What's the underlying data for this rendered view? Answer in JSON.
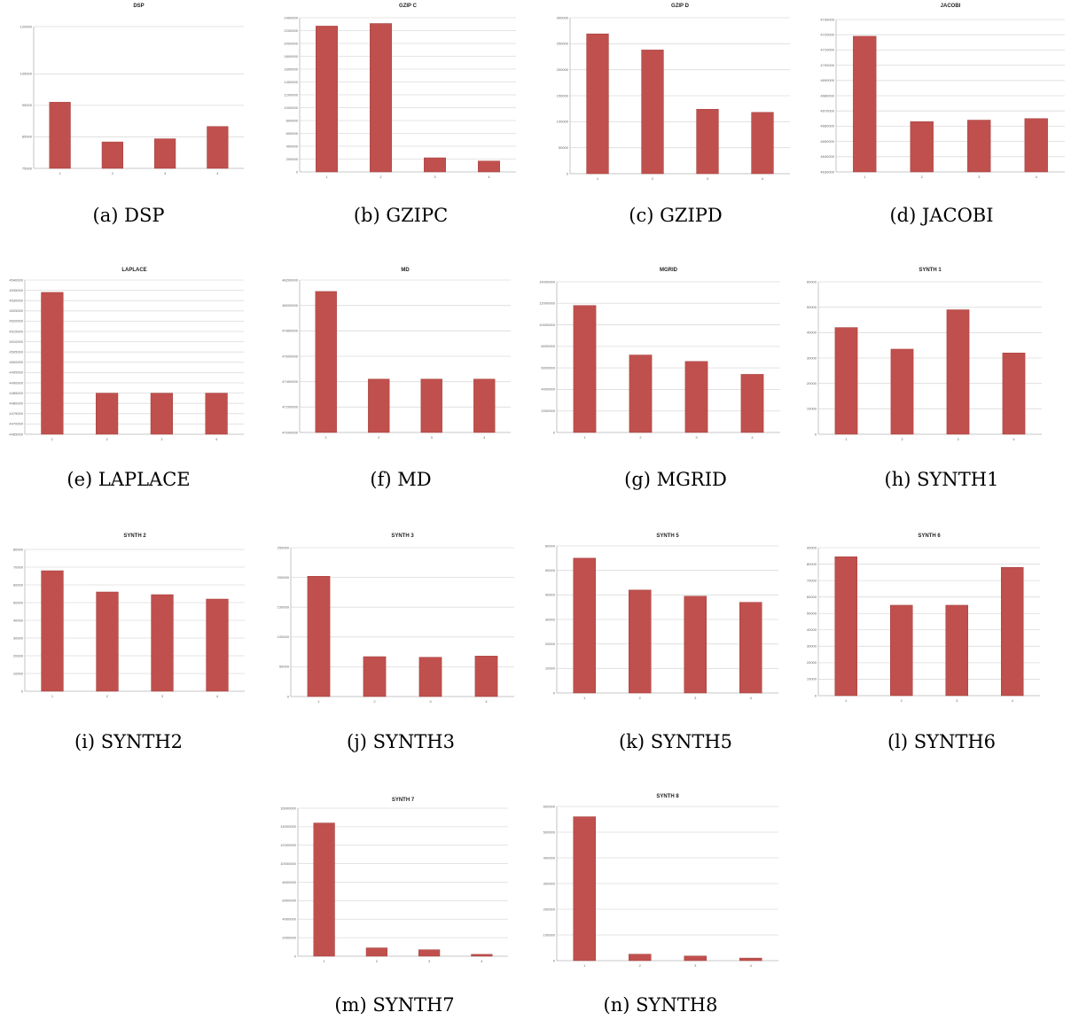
{
  "bar_color": "#c0504d",
  "captions": [
    "(a) DSP",
    "(b) GZIPC",
    "(c) GZIPD",
    "(d) JACOBI",
    "(e) LAPLACE",
    "(f) MD",
    "(g) MGRID",
    "(h) SYNTH1",
    "(i) SYNTH2",
    "(j) SYNTH3",
    "(k) SYNTH5",
    "(l) SYNTH6",
    "(m) SYNTH7",
    "(n) SYNTH8"
  ],
  "chart_data": [
    {
      "type": "bar",
      "title": "DSP",
      "categories": [
        "1",
        "2",
        "3",
        "4"
      ],
      "values": [
        96000,
        83400,
        84400,
        88300
      ],
      "ylim": [
        75000,
        120000
      ],
      "yticks": [
        75000,
        85000,
        95000,
        105000,
        120000
      ]
    },
    {
      "type": "bar",
      "title": "GZIP C",
      "categories": [
        "1",
        "2",
        "3",
        "4"
      ],
      "values": [
        2270000,
        2310000,
        220000,
        170000
      ],
      "ylim": [
        0,
        2400000
      ],
      "yticks": [
        0,
        200000,
        400000,
        600000,
        800000,
        1000000,
        1200000,
        1400000,
        1600000,
        1800000,
        2000000,
        2200000,
        2400000
      ]
    },
    {
      "type": "bar",
      "title": "GZIP D",
      "categories": [
        "1",
        "2",
        "3",
        "4"
      ],
      "values": [
        269000,
        238000,
        124000,
        118000
      ],
      "ylim": [
        0,
        300000
      ],
      "yticks": [
        0,
        50000,
        100000,
        150000,
        200000,
        250000,
        300000
      ]
    },
    {
      "type": "bar",
      "title": "JACOBI",
      "categories": [
        "1",
        "2",
        "3",
        "4"
      ],
      "values": [
        4719000,
        4663000,
        4664000,
        4665000
      ],
      "ylim": [
        4630000,
        4730000
      ],
      "yticks": [
        4630000,
        4640000,
        4650000,
        4660000,
        4670000,
        4680000,
        4690000,
        4700000,
        4710000,
        4720000,
        4730000
      ]
    },
    {
      "type": "bar",
      "title": "LAPLACE",
      "categories": [
        "1",
        "2",
        "3",
        "4"
      ],
      "values": [
        4534000,
        4485000,
        4485000,
        4485000
      ],
      "ylim": [
        4465000,
        4540000
      ],
      "yticks": [
        4465000,
        4470000,
        4475000,
        4480000,
        4485000,
        4490000,
        4495000,
        4500000,
        4505000,
        4510000,
        4515000,
        4520000,
        4525000,
        4530000,
        4535000,
        4540000
      ]
    },
    {
      "type": "bar",
      "title": "MD",
      "categories": [
        "1",
        "2",
        "3",
        "4"
      ],
      "values": [
        48110000,
        47420000,
        47420000,
        47420000
      ],
      "ylim": [
        47000000,
        48200000
      ],
      "yticks": [
        47000000,
        47200000,
        47400000,
        47600000,
        47800000,
        48000000,
        48200000
      ]
    },
    {
      "type": "bar",
      "title": "MGRID",
      "categories": [
        "1",
        "2",
        "3",
        "4"
      ],
      "values": [
        11800000,
        7200000,
        6600000,
        5400000
      ],
      "ylim": [
        0,
        14000000
      ],
      "yticks": [
        0,
        2000000,
        4000000,
        6000000,
        8000000,
        10000000,
        12000000,
        14000000
      ]
    },
    {
      "type": "bar",
      "title": "SYNTH 1",
      "categories": [
        "1",
        "2",
        "3",
        "4"
      ],
      "values": [
        42000,
        33500,
        49000,
        32000
      ],
      "ylim": [
        0,
        60000
      ],
      "yticks": [
        0,
        10000,
        20000,
        30000,
        40000,
        50000,
        60000
      ]
    },
    {
      "type": "bar",
      "title": "SYNTH 2",
      "categories": [
        "1",
        "2",
        "3",
        "4"
      ],
      "values": [
        68000,
        56000,
        54500,
        52000
      ],
      "ylim": [
        0,
        80000
      ],
      "yticks": [
        0,
        10000,
        20000,
        30000,
        40000,
        50000,
        60000,
        70000,
        80000
      ]
    },
    {
      "type": "bar",
      "title": "SYNTH 3",
      "categories": [
        "1",
        "2",
        "3",
        "4"
      ],
      "values": [
        202000,
        67000,
        66000,
        68000
      ],
      "ylim": [
        0,
        250000
      ],
      "yticks": [
        0,
        50000,
        100000,
        150000,
        200000,
        250000
      ]
    },
    {
      "type": "bar",
      "title": "SYNTH 5",
      "categories": [
        "1",
        "2",
        "3",
        "4"
      ],
      "values": [
        55000,
        42000,
        39500,
        37000
      ],
      "ylim": [
        0,
        60000
      ],
      "yticks": [
        0,
        10000,
        20000,
        30000,
        40000,
        50000,
        60000
      ]
    },
    {
      "type": "bar",
      "title": "SYNTH 6",
      "categories": [
        "1",
        "2",
        "3",
        "4"
      ],
      "values": [
        84500,
        55000,
        55000,
        78000
      ],
      "ylim": [
        0,
        90000
      ],
      "yticks": [
        0,
        10000,
        20000,
        30000,
        40000,
        50000,
        60000,
        70000,
        80000,
        90000
      ]
    },
    {
      "type": "bar",
      "title": "SYNTH 7",
      "categories": [
        "1",
        "2",
        "3",
        "4"
      ],
      "values": [
        14400000,
        900000,
        700000,
        200000
      ],
      "ylim": [
        0,
        16000000
      ],
      "yticks": [
        0,
        2000000,
        4000000,
        6000000,
        8000000,
        10000000,
        12000000,
        14000000,
        16000000
      ]
    },
    {
      "type": "bar",
      "title": "SYNTH 8",
      "categories": [
        "1",
        "2",
        "3",
        "4"
      ],
      "values": [
        560000,
        25000,
        18000,
        10000
      ],
      "ylim": [
        0,
        600000
      ],
      "yticks": [
        0,
        100000,
        200000,
        300000,
        400000,
        500000,
        600000
      ]
    }
  ]
}
